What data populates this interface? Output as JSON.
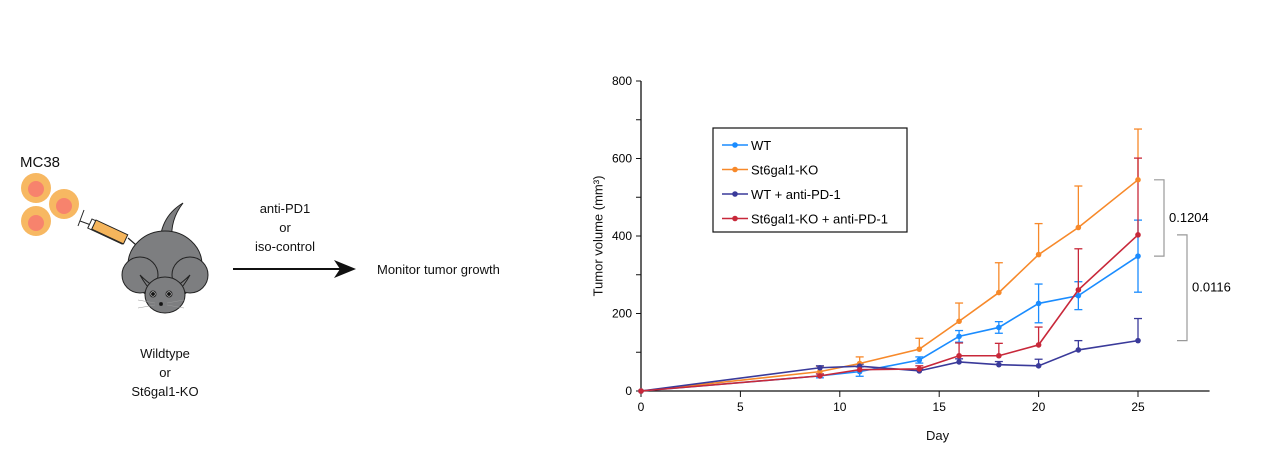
{
  "schematic": {
    "cell_line": "MC38",
    "treatment_line1": "anti-PD1",
    "treatment_line2": "or",
    "treatment_line3": "iso-control",
    "outcome": "Monitor tumor growth",
    "mouse_line1": "Wildtype",
    "mouse_line2": "or",
    "mouse_line3": "St6gal1-KO",
    "colors": {
      "cell_outer": "#f7b862",
      "cell_inner": "#f7836d",
      "mouse": "#7d7e80",
      "syringe": "#f5b55c"
    }
  },
  "chart_data": {
    "type": "line",
    "xlabel": "Day",
    "ylabel": "Tumor volume (mm³)",
    "xlim": [
      0,
      28.6
    ],
    "ylim": [
      0,
      800
    ],
    "xticks": [
      0,
      5,
      10,
      15,
      20,
      25
    ],
    "yticks": [
      0,
      200,
      400,
      600,
      800
    ],
    "grid": false,
    "legend_placement": "top-left",
    "x": [
      0,
      9,
      11,
      14,
      16,
      18,
      20,
      22,
      25
    ],
    "series": [
      {
        "name": "WT",
        "color": "#1a8cff",
        "values": [
          0,
          39,
          50,
          80,
          141,
          164,
          226,
          246,
          348
        ],
        "error": [
          0,
          5,
          12,
          8,
          15,
          15,
          50,
          36,
          93
        ],
        "error_style": "both"
      },
      {
        "name": "St6gal1-KO",
        "color": "#f7892a",
        "values": [
          0,
          50,
          71,
          108,
          180,
          254,
          352,
          422,
          545
        ],
        "error": [
          0,
          14,
          17,
          28,
          47,
          77,
          80,
          107,
          131
        ],
        "error_style": "up"
      },
      {
        "name": "WT + anti-PD-1",
        "color": "#3a3a9a",
        "values": [
          0,
          60,
          64,
          52,
          75,
          68,
          65,
          106,
          130
        ],
        "error": [
          0,
          5,
          5,
          5,
          8,
          8,
          17,
          24,
          57
        ],
        "error_style": "up"
      },
      {
        "name": "St6gal1-KO + anti-PD-1",
        "color": "#c8283a",
        "values": [
          0,
          39,
          55,
          57,
          91,
          91,
          119,
          261,
          403
        ],
        "error": [
          0,
          5,
          8,
          8,
          33,
          32,
          46,
          106,
          198
        ],
        "error_style": "up"
      }
    ],
    "annotations": [
      {
        "text": "0.1204",
        "between": [
          "St6gal1-KO",
          "WT"
        ],
        "day": 25
      },
      {
        "text": "0.0116",
        "between": [
          "St6gal1-KO + anti-PD-1",
          "WT + anti-PD-1"
        ],
        "day": 25
      }
    ]
  }
}
